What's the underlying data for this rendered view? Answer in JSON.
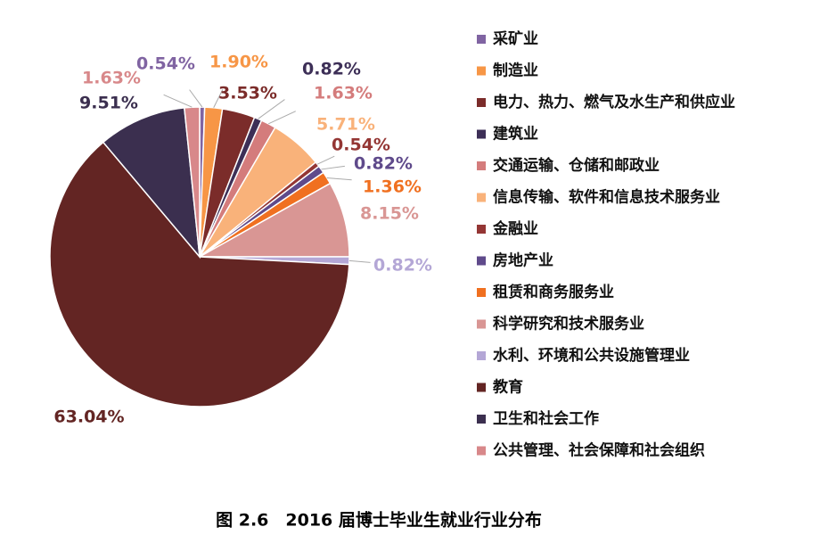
{
  "chart_data": {
    "type": "pie",
    "title": "图 2.6　2016 届博士毕业生就业行业分布",
    "categories": [
      "采矿业",
      "制造业",
      "电力、热力、燃气及水生产和供应业",
      "建筑业",
      "交通运输、仓储和邮政业",
      "信息传输、软件和信息技术服务业",
      "金融业",
      "房地产业",
      "租赁和商务服务业",
      "科学研究和技术服务业",
      "水利、环境和公共设施管理业",
      "教育",
      "卫生和社会工作",
      "公共管理、社会保障和社会组织"
    ],
    "values": [
      0.54,
      1.9,
      3.53,
      0.82,
      1.63,
      5.71,
      0.54,
      0.82,
      1.36,
      8.15,
      0.82,
      63.04,
      9.51,
      1.63
    ],
    "value_labels": [
      "0.54%",
      "1.90%",
      "3.53%",
      "0.82%",
      "1.63%",
      "5.71%",
      "0.54%",
      "0.82%",
      "1.36%",
      "8.15%",
      "0.82%",
      "63.04%",
      "9.51%",
      "1.63%"
    ],
    "colors": [
      "#8064a2",
      "#f79646",
      "#7b2c2a",
      "#3d2f57",
      "#d47c7c",
      "#f9b27a",
      "#943634",
      "#5f4a8b",
      "#f07020",
      "#d99694",
      "#b4a7d6",
      "#632523",
      "#3b2f4f",
      "#d8888a"
    ],
    "legend": "right"
  }
}
